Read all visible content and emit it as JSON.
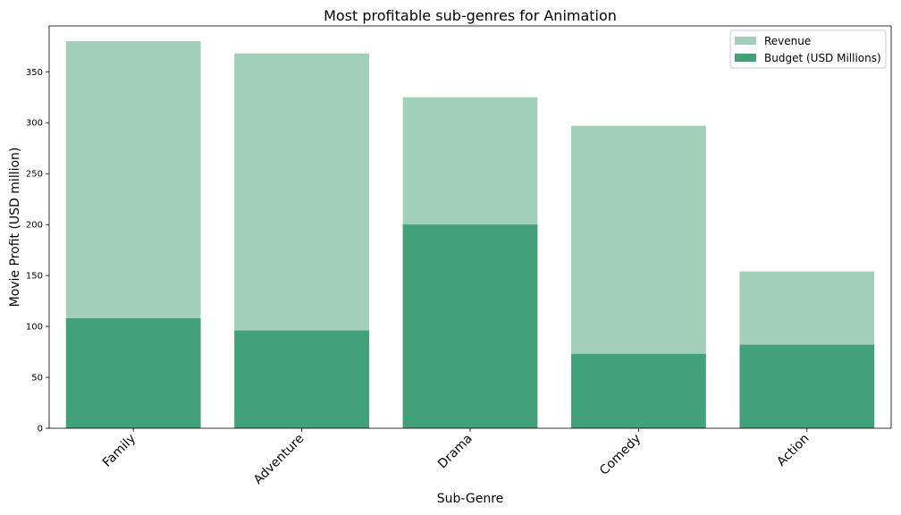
{
  "chart_data": {
    "type": "bar",
    "title": "Most profitable sub-genres for Animation",
    "xlabel": "Sub-Genre",
    "ylabel": "Movie Profit (USD million)",
    "categories": [
      "Family",
      "Adventure",
      "Drama",
      "Comedy",
      "Action"
    ],
    "series": [
      {
        "name": "Revenue",
        "values": [
          380,
          368,
          325,
          297,
          154
        ],
        "color": "#a1cfba"
      },
      {
        "name": "Budget (USD Millions)",
        "values": [
          108,
          96,
          200,
          73,
          82
        ],
        "color": "#42a178"
      }
    ],
    "ylim": [
      0,
      395
    ],
    "yticks": [
      0,
      50,
      100,
      150,
      200,
      250,
      300,
      350
    ],
    "grid": false,
    "legend_position": "top-right",
    "overlap": true
  }
}
